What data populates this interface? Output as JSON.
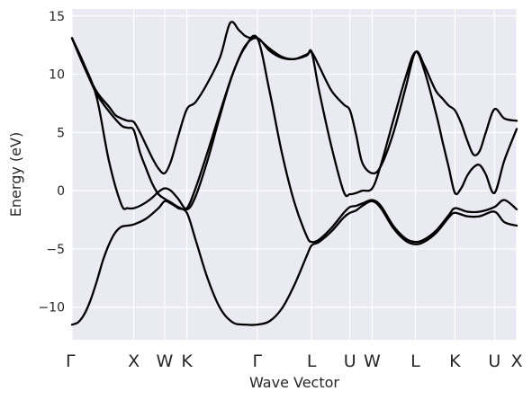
{
  "chart_data": {
    "type": "line",
    "title": "",
    "xlabel": "Wave Vector",
    "ylabel": "Energy (eV)",
    "ylim": [
      -12.8,
      15.6
    ],
    "y_ticks": [
      -10,
      -5,
      0,
      5,
      10,
      15
    ],
    "y_tick_labels": [
      "−10",
      "−5",
      "0",
      "5",
      "10",
      "15"
    ],
    "grid": true,
    "x_range": [
      0,
      3.6
    ],
    "k_points": [
      {
        "label": "Γ",
        "x": 0.0
      },
      {
        "label": "X",
        "x": 0.5
      },
      {
        "label": "W",
        "x": 0.75
      },
      {
        "label": "K",
        "x": 0.93
      },
      {
        "label": "Γ",
        "x": 1.5
      },
      {
        "label": "L",
        "x": 1.94
      },
      {
        "label": "U",
        "x": 2.25
      },
      {
        "label": "W",
        "x": 2.43
      },
      {
        "label": "L",
        "x": 2.78
      },
      {
        "label": "K",
        "x": 3.1
      },
      {
        "label": "U",
        "x": 3.42
      },
      {
        "label": "X",
        "x": 3.6
      }
    ],
    "line_color": "#000000",
    "plot_background": "#eaeaf2",
    "grid_color": "#ffffff",
    "series": [
      {
        "x": [
          0,
          0.05,
          0.1,
          0.15,
          0.2,
          0.25,
          0.3,
          0.35,
          0.4,
          0.45,
          0.5,
          0.6,
          0.7,
          0.75,
          0.8,
          0.86,
          0.93,
          1.0,
          1.1,
          1.2,
          1.3,
          1.4,
          1.5,
          1.6,
          1.7,
          1.8,
          1.9,
          1.94,
          2.0,
          2.1,
          2.2,
          2.25,
          2.3,
          2.35,
          2.43,
          2.5,
          2.6,
          2.7,
          2.78,
          2.85,
          2.95,
          3.05,
          3.1,
          3.2,
          3.3,
          3.42,
          3.5,
          3.6
        ],
        "y": [
          -11.5,
          -11.3,
          -10.6,
          -9.4,
          -7.8,
          -6.0,
          -4.6,
          -3.6,
          -3.1,
          -3.0,
          -2.9,
          -2.4,
          -1.5,
          -0.9,
          -1.1,
          -1.5,
          -1.9,
          -4.2,
          -7.6,
          -10.1,
          -11.3,
          -11.5,
          -11.5,
          -11.2,
          -10.1,
          -8.1,
          -5.6,
          -4.7,
          -4.4,
          -3.5,
          -2.3,
          -1.9,
          -1.7,
          -1.3,
          -0.9,
          -1.5,
          -3.2,
          -4.3,
          -4.6,
          -4.4,
          -3.6,
          -2.3,
          -1.9,
          -2.2,
          -2.2,
          -1.8,
          -2.7,
          -3.0
        ]
      },
      {
        "x": [
          0,
          0.1,
          0.2,
          0.3,
          0.4,
          0.45,
          0.5,
          0.55,
          0.6,
          0.65,
          0.7,
          0.75,
          0.8,
          0.86,
          0.93,
          1.0,
          1.1,
          1.2,
          1.3,
          1.4,
          1.5,
          1.6,
          1.7,
          1.8,
          1.9,
          1.94,
          2.0,
          2.1,
          2.2,
          2.25,
          2.3,
          2.35,
          2.43,
          2.5,
          2.6,
          2.7,
          2.78,
          2.85,
          2.95,
          3.05,
          3.1,
          3.2,
          3.3,
          3.42,
          3.5,
          3.6
        ],
        "y": [
          13.1,
          10.8,
          8.0,
          2.5,
          -1.2,
          -1.5,
          -1.5,
          -1.3,
          -1.0,
          -0.6,
          -0.1,
          0.2,
          0.0,
          -0.7,
          -1.6,
          -0.5,
          2.7,
          6.5,
          10.0,
          12.3,
          13.1,
          8.5,
          3.2,
          -1.0,
          -3.9,
          -4.4,
          -4.2,
          -3.2,
          -1.9,
          -1.4,
          -1.3,
          -1.1,
          -0.8,
          -1.3,
          -3.0,
          -4.1,
          -4.4,
          -4.2,
          -3.4,
          -2.1,
          -1.5,
          -1.8,
          -1.8,
          -1.4,
          -0.8,
          -1.6
        ]
      },
      {
        "x": [
          0,
          0.1,
          0.2,
          0.3,
          0.4,
          0.45,
          0.5,
          0.55,
          0.6,
          0.65,
          0.7,
          0.75,
          0.8,
          0.86,
          0.93,
          1.0,
          1.1,
          1.2,
          1.3,
          1.4,
          1.5,
          1.6,
          1.7,
          1.8,
          1.9,
          1.94,
          2.0,
          2.1,
          2.2,
          2.25,
          2.3,
          2.35,
          2.43,
          2.5,
          2.6,
          2.7,
          2.78,
          2.85,
          2.95,
          3.0,
          3.05,
          3.1,
          3.15,
          3.2,
          3.25,
          3.3,
          3.35,
          3.42,
          3.5,
          3.6
        ],
        "y": [
          13.1,
          10.6,
          8.3,
          6.8,
          5.6,
          5.4,
          5.2,
          3.3,
          1.9,
          0.6,
          -0.3,
          -0.7,
          -1.0,
          -1.4,
          -1.5,
          0.2,
          3.4,
          6.8,
          10.0,
          12.4,
          13.1,
          12.0,
          11.4,
          11.3,
          11.6,
          11.9,
          8.6,
          3.8,
          -0.1,
          -0.3,
          -0.2,
          0.0,
          0.2,
          2.2,
          6.0,
          9.7,
          11.9,
          10.4,
          6.5,
          4.2,
          2.0,
          -0.2,
          0.2,
          1.3,
          2.0,
          2.2,
          1.4,
          -0.2,
          2.6,
          5.3
        ]
      },
      {
        "x": [
          0,
          0.1,
          0.2,
          0.3,
          0.35,
          0.4,
          0.45,
          0.5,
          0.55,
          0.6,
          0.65,
          0.7,
          0.75,
          0.8,
          0.86,
          0.93,
          1.0,
          1.1,
          1.2,
          1.28,
          1.35,
          1.4,
          1.45,
          1.5,
          1.6,
          1.7,
          1.8,
          1.9,
          1.94,
          2.0,
          2.1,
          2.2,
          2.25,
          2.3,
          2.35,
          2.43,
          2.5,
          2.6,
          2.7,
          2.78,
          2.85,
          2.9,
          2.95,
          3.0,
          3.05,
          3.1,
          3.15,
          3.2,
          3.25,
          3.3,
          3.35,
          3.42,
          3.5,
          3.6
        ],
        "y": [
          13.1,
          10.6,
          8.5,
          7.2,
          6.5,
          6.2,
          6.0,
          5.9,
          5.0,
          3.9,
          2.8,
          1.9,
          1.5,
          2.5,
          4.7,
          7.0,
          7.6,
          9.3,
          11.5,
          14.4,
          13.8,
          13.3,
          13.1,
          13.1,
          12.2,
          11.5,
          11.3,
          11.7,
          11.9,
          10.7,
          8.6,
          7.4,
          6.9,
          4.8,
          2.4,
          1.5,
          2.1,
          4.9,
          8.8,
          11.9,
          10.8,
          9.6,
          8.5,
          7.9,
          7.3,
          6.9,
          5.8,
          4.3,
          3.1,
          3.4,
          5.0,
          7.0,
          6.2,
          6.0
        ]
      }
    ]
  }
}
